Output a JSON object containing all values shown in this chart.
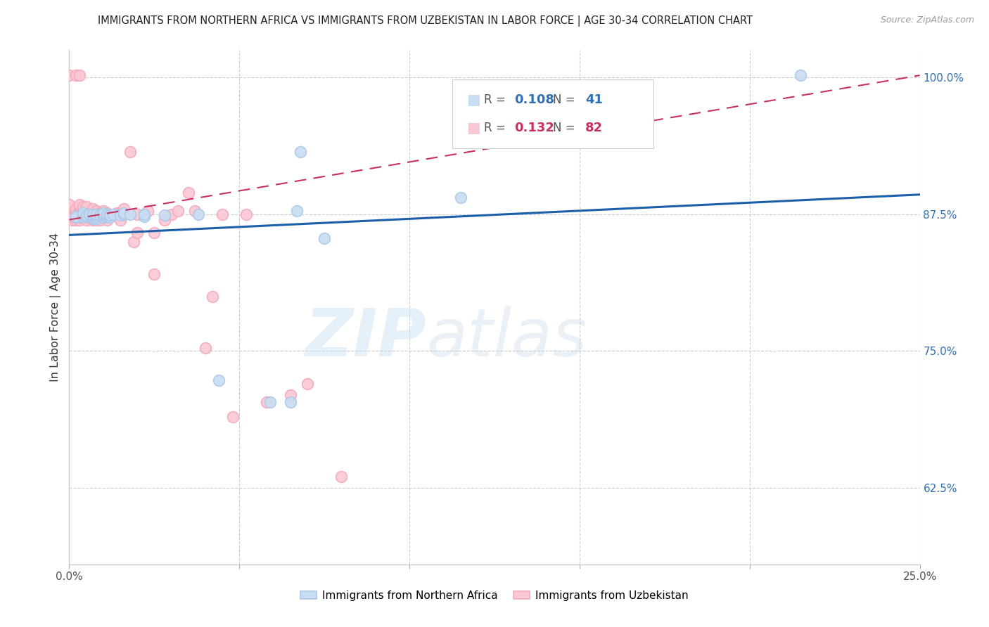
{
  "title": "IMMIGRANTS FROM NORTHERN AFRICA VS IMMIGRANTS FROM UZBEKISTAN IN LABOR FORCE | AGE 30-34 CORRELATION CHART",
  "source": "Source: ZipAtlas.com",
  "ylabel": "In Labor Force | Age 30-34",
  "watermark": "ZIPatlas",
  "xlim": [
    0.0,
    0.25
  ],
  "ylim": [
    0.555,
    1.025
  ],
  "xticks": [
    0.0,
    0.05,
    0.1,
    0.15,
    0.2,
    0.25
  ],
  "xticklabels": [
    "0.0%",
    "",
    "",
    "",
    "",
    "25.0%"
  ],
  "yticks_right": [
    0.625,
    0.75,
    0.875,
    1.0
  ],
  "yticklabels_right": [
    "62.5%",
    "75.0%",
    "87.5%",
    "100.0%"
  ],
  "blue_color": "#adc8e8",
  "pink_color": "#f2aaba",
  "blue_fill_color": "#c8ddf2",
  "pink_fill_color": "#fac8d4",
  "blue_line_color": "#1a5fa8",
  "pink_line_color": "#c83060",
  "legend_blue_R": "0.108",
  "legend_blue_N": "41",
  "legend_pink_R": "0.132",
  "legend_pink_N": "82",
  "blue_scatter_x": [
    0.002,
    0.002,
    0.004,
    0.004,
    0.004,
    0.005,
    0.005,
    0.006,
    0.007,
    0.007,
    0.007,
    0.007,
    0.008,
    0.008,
    0.008,
    0.009,
    0.01,
    0.01,
    0.01,
    0.01,
    0.011,
    0.011,
    0.012,
    0.012,
    0.013,
    0.015,
    0.016,
    0.016,
    0.018,
    0.022,
    0.022,
    0.028,
    0.038,
    0.044,
    0.059,
    0.065,
    0.067,
    0.068,
    0.075,
    0.115,
    0.215
  ],
  "blue_scatter_y": [
    0.872,
    0.873,
    0.873,
    0.875,
    0.876,
    0.873,
    0.874,
    0.875,
    0.871,
    0.872,
    0.874,
    0.875,
    0.871,
    0.873,
    0.875,
    0.874,
    0.872,
    0.874,
    0.875,
    0.876,
    0.873,
    0.875,
    0.872,
    0.874,
    0.875,
    0.874,
    0.875,
    0.876,
    0.875,
    0.873,
    0.875,
    0.874,
    0.875,
    0.723,
    0.703,
    0.703,
    0.878,
    0.932,
    0.853,
    0.89,
    1.002
  ],
  "pink_scatter_x": [
    0.0,
    0.0,
    0.0,
    0.0,
    0.0,
    0.0,
    0.0,
    0.0,
    0.001,
    0.001,
    0.002,
    0.002,
    0.002,
    0.002,
    0.002,
    0.002,
    0.002,
    0.003,
    0.003,
    0.003,
    0.003,
    0.003,
    0.003,
    0.003,
    0.003,
    0.003,
    0.004,
    0.004,
    0.004,
    0.004,
    0.004,
    0.004,
    0.005,
    0.005,
    0.005,
    0.005,
    0.005,
    0.005,
    0.005,
    0.006,
    0.006,
    0.007,
    0.007,
    0.007,
    0.007,
    0.008,
    0.008,
    0.008,
    0.009,
    0.009,
    0.01,
    0.01,
    0.011,
    0.011,
    0.012,
    0.013,
    0.014,
    0.015,
    0.015,
    0.016,
    0.018,
    0.019,
    0.02,
    0.02,
    0.022,
    0.023,
    0.025,
    0.025,
    0.028,
    0.03,
    0.032,
    0.035,
    0.037,
    0.04,
    0.042,
    0.045,
    0.048,
    0.052,
    0.058,
    0.065,
    0.07,
    0.08
  ],
  "pink_scatter_y": [
    0.872,
    0.874,
    0.876,
    0.878,
    0.88,
    0.882,
    0.884,
    1.002,
    0.87,
    0.872,
    0.87,
    0.872,
    0.874,
    0.876,
    0.878,
    0.88,
    1.002,
    0.87,
    0.872,
    0.874,
    0.876,
    0.878,
    0.88,
    0.882,
    0.884,
    1.002,
    0.872,
    0.874,
    0.876,
    0.878,
    0.88,
    0.882,
    0.87,
    0.872,
    0.874,
    0.876,
    0.878,
    0.88,
    0.882,
    0.872,
    0.876,
    0.87,
    0.872,
    0.876,
    0.88,
    0.87,
    0.874,
    0.878,
    0.87,
    0.876,
    0.874,
    0.878,
    0.87,
    0.876,
    0.872,
    0.874,
    0.876,
    0.87,
    0.876,
    0.88,
    0.932,
    0.85,
    0.858,
    0.875,
    0.875,
    0.878,
    0.82,
    0.858,
    0.87,
    0.875,
    0.878,
    0.895,
    0.878,
    0.753,
    0.8,
    0.875,
    0.69,
    0.875,
    0.703,
    0.71,
    0.72,
    0.635
  ],
  "blue_trend_x": [
    0.0,
    0.25
  ],
  "blue_trend_y": [
    0.856,
    0.893
  ],
  "pink_trend_x": [
    0.0,
    0.25
  ],
  "pink_trend_y": [
    0.87,
    1.002
  ]
}
